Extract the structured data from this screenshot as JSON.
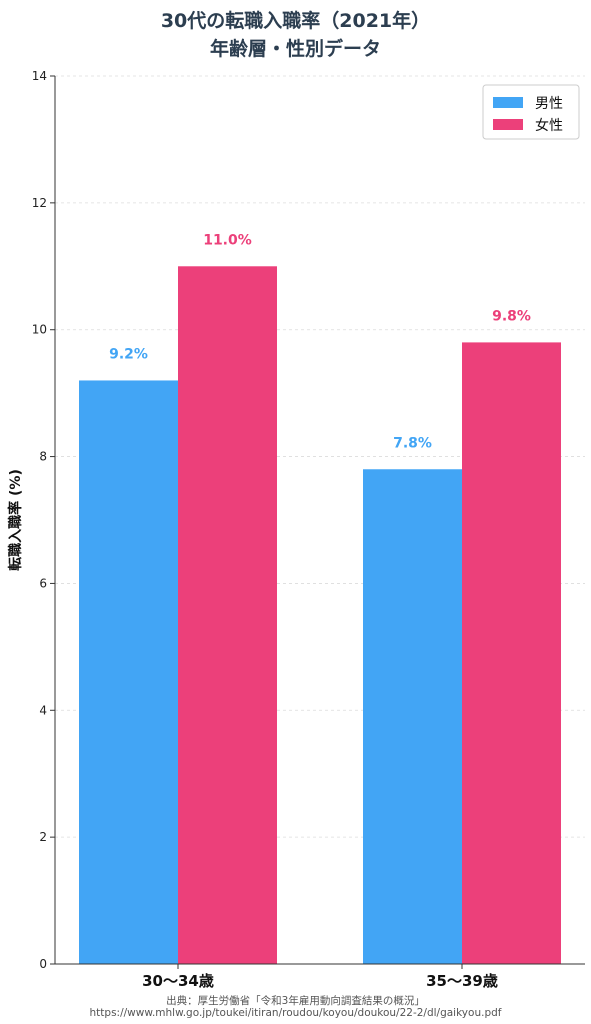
{
  "title_line1": "30代の転職入職率（2021年）",
  "title_line2": "年齢層・性別データ",
  "source_line1": "出典：厚生労働省「令和3年雇用動向調査結果の概況」",
  "source_line2": "https://www.mhlw.go.jp/toukei/itiran/roudou/koyou/doukou/22-2/dl/gaikyou.pdf",
  "colors": {
    "male": "#42a5f5",
    "female": "#ec407a",
    "title": "#2c3e50"
  },
  "chart_data": {
    "type": "bar",
    "categories": [
      "30〜34歳",
      "35〜39歳"
    ],
    "series": [
      {
        "name": "男性",
        "values": [
          9.2,
          7.8
        ],
        "labels": [
          "9.2%",
          "7.8%"
        ],
        "color": "#42a5f5"
      },
      {
        "name": "女性",
        "values": [
          11.0,
          9.8
        ],
        "labels": [
          "11.0%",
          "9.8%"
        ],
        "color": "#ec407a"
      }
    ],
    "ylabel": "転職入職率 (%)",
    "xlabel": "",
    "ylim": [
      0,
      14
    ],
    "yticks": [
      0,
      2,
      4,
      6,
      8,
      10,
      12,
      14
    ],
    "grid": true,
    "legend": "top-right"
  }
}
